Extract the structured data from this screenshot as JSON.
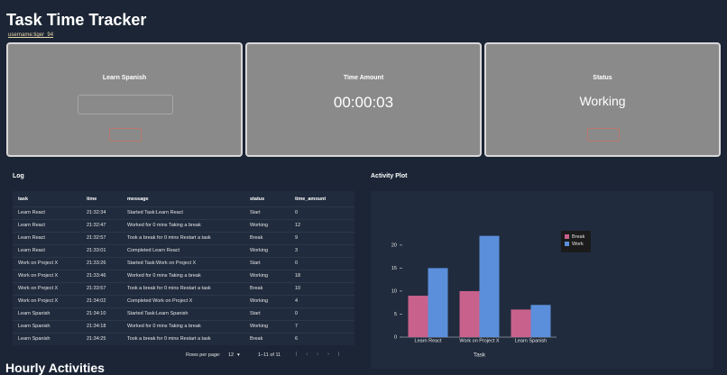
{
  "header": {
    "title": "Task Time Tracker",
    "username": "username:tiger_94"
  },
  "cards": [
    {
      "title": "Learn Spanish"
    },
    {
      "title": "Time Amount",
      "value": "00:00:03"
    },
    {
      "title": "Status",
      "value": "Working"
    }
  ],
  "log": {
    "title": "Log",
    "columns": [
      "task",
      "time",
      "message",
      "status",
      "time_amount"
    ],
    "rows": [
      [
        "Learn React",
        "21:32:34",
        "Started Task:Learn React",
        "Start",
        0
      ],
      [
        "Learn React",
        "21:32:47",
        "Worked for 0 mins Taking a break",
        "Working",
        12
      ],
      [
        "Learn React",
        "21:32:57",
        "Took a break for 0 mins Restart a task",
        "Break",
        9
      ],
      [
        "Learn React",
        "21:33:01",
        "Completed Learn React",
        "Working",
        3
      ],
      [
        "Work on Project X",
        "21:33:26",
        "Started Task:Work on Project X",
        "Start",
        0
      ],
      [
        "Work on Project X",
        "21:33:46",
        "Worked for 0 mins Taking a break",
        "Working",
        18
      ],
      [
        "Work on Project X",
        "21:33:57",
        "Took a break for 0 mins Restart a task",
        "Break",
        10
      ],
      [
        "Work on Project X",
        "21:34:02",
        "Completed Work on Project X",
        "Working",
        4
      ],
      [
        "Learn Spanish",
        "21:34:10",
        "Started Task:Learn Spanish",
        "Start",
        0
      ],
      [
        "Learn Spanish",
        "21:34:18",
        "Worked for 0 mins Taking a break",
        "Working",
        7
      ],
      [
        "Learn Spanish",
        "21:34:25",
        "Took a break for 0 mins Restart a task",
        "Break",
        6
      ]
    ],
    "footer": {
      "rows_per_page_label": "Rows per page:",
      "rows_per_page": 12,
      "range": "1–11 of 11"
    }
  },
  "chart_data": {
    "type": "bar",
    "title": "Activity Plot",
    "x_label": "Task",
    "categories": [
      "Learn React",
      "Work on Project X",
      "Learn Spanish"
    ],
    "series": [
      {
        "name": "Break",
        "color": "#c8618c",
        "values": [
          9,
          10,
          6
        ]
      },
      {
        "name": "Work",
        "color": "#5b8fdc",
        "values": [
          15,
          22,
          7
        ]
      }
    ],
    "ylim": [
      0,
      23.5
    ],
    "yticks": [
      0,
      5,
      10,
      15,
      20
    ],
    "legend": "upper right"
  },
  "next_section": {
    "title": "Hourly Activities"
  }
}
